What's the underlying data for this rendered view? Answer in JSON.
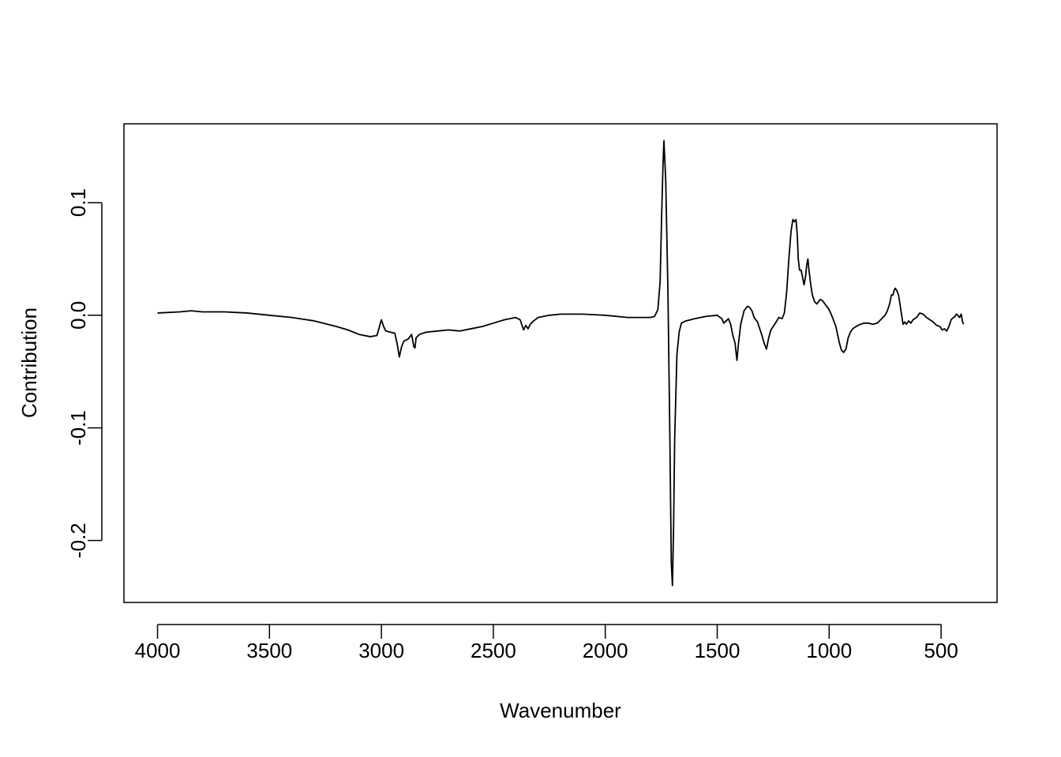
{
  "chart_data": {
    "type": "line",
    "title": "",
    "xlabel": "Wavenumber",
    "ylabel": "Contribution",
    "xlim": [
      4150,
      250
    ],
    "ylim": [
      -0.255,
      0.17
    ],
    "x_reversed": true,
    "grid": false,
    "legend": "none",
    "xticks": [
      4000,
      3500,
      3000,
      2500,
      2000,
      1500,
      1000,
      500
    ],
    "xtick_labels": [
      "4000",
      "3500",
      "3000",
      "2500",
      "2000",
      "1500",
      "1000",
      "500"
    ],
    "yticks": [
      0.1,
      0.0,
      -0.1,
      -0.2
    ],
    "ytick_labels": [
      "0.1",
      "0.0",
      "-0.1",
      "-0.2"
    ],
    "line_color": "#000000",
    "series": [
      {
        "x": [
          4000,
          3900,
          3850,
          3800,
          3700,
          3600,
          3500,
          3400,
          3300,
          3200,
          3150,
          3100,
          3050,
          3020,
          3000,
          2990,
          2980,
          2960,
          2940,
          2930,
          2920,
          2910,
          2900,
          2880,
          2865,
          2855,
          2850,
          2845,
          2830,
          2800,
          2750,
          2700,
          2650,
          2600,
          2550,
          2500,
          2450,
          2400,
          2380,
          2365,
          2355,
          2345,
          2335,
          2320,
          2300,
          2250,
          2200,
          2100,
          2000,
          1900,
          1800,
          1780,
          1765,
          1755,
          1748,
          1742,
          1738,
          1730,
          1720,
          1712,
          1708,
          1705,
          1700,
          1695,
          1690,
          1680,
          1670,
          1660,
          1640,
          1600,
          1550,
          1500,
          1480,
          1470,
          1460,
          1450,
          1440,
          1430,
          1420,
          1412,
          1405,
          1395,
          1380,
          1365,
          1355,
          1345,
          1335,
          1320,
          1300,
          1290,
          1280,
          1270,
          1260,
          1240,
          1225,
          1210,
          1200,
          1190,
          1180,
          1170,
          1162,
          1155,
          1148,
          1142,
          1138,
          1132,
          1125,
          1118,
          1112,
          1105,
          1100,
          1095,
          1090,
          1082,
          1075,
          1065,
          1055,
          1040,
          1030,
          1015,
          1000,
          985,
          970,
          955,
          945,
          935,
          925,
          915,
          905,
          895,
          880,
          860,
          845,
          825,
          805,
          785,
          765,
          750,
          740,
          730,
          722,
          715,
          710,
          705,
          698,
          690,
          680,
          670,
          662,
          655,
          645,
          635,
          625,
          610,
          595,
          580,
          565,
          550,
          535,
          520,
          505,
          495,
          485,
          475,
          465,
          455,
          445,
          438,
          432,
          425,
          418,
          410,
          405,
          400
        ],
        "y": [
          0.002,
          0.003,
          0.004,
          0.003,
          0.003,
          0.002,
          0.0,
          -0.002,
          -0.005,
          -0.01,
          -0.013,
          -0.017,
          -0.019,
          -0.018,
          -0.004,
          -0.01,
          -0.014,
          -0.015,
          -0.016,
          -0.025,
          -0.037,
          -0.028,
          -0.023,
          -0.021,
          -0.017,
          -0.028,
          -0.029,
          -0.02,
          -0.017,
          -0.015,
          -0.014,
          -0.013,
          -0.014,
          -0.012,
          -0.01,
          -0.007,
          -0.004,
          -0.002,
          -0.004,
          -0.013,
          -0.009,
          -0.012,
          -0.008,
          -0.005,
          -0.002,
          0.0,
          0.001,
          0.001,
          0.0,
          -0.002,
          -0.002,
          -0.001,
          0.005,
          0.03,
          0.09,
          0.135,
          0.155,
          0.12,
          0.02,
          -0.1,
          -0.17,
          -0.22,
          -0.24,
          -0.19,
          -0.11,
          -0.035,
          -0.015,
          -0.007,
          -0.005,
          -0.003,
          -0.001,
          0.0,
          -0.003,
          -0.007,
          -0.005,
          -0.003,
          -0.008,
          -0.018,
          -0.025,
          -0.04,
          -0.025,
          -0.008,
          0.004,
          0.008,
          0.007,
          0.004,
          -0.002,
          -0.006,
          -0.018,
          -0.025,
          -0.03,
          -0.02,
          -0.013,
          -0.007,
          -0.002,
          -0.003,
          0.002,
          0.02,
          0.05,
          0.075,
          0.085,
          0.083,
          0.085,
          0.07,
          0.05,
          0.04,
          0.04,
          0.033,
          0.027,
          0.035,
          0.045,
          0.05,
          0.04,
          0.027,
          0.018,
          0.012,
          0.01,
          0.014,
          0.013,
          0.009,
          0.005,
          -0.002,
          -0.01,
          -0.024,
          -0.031,
          -0.033,
          -0.03,
          -0.02,
          -0.015,
          -0.012,
          -0.01,
          -0.008,
          -0.007,
          -0.007,
          -0.008,
          -0.007,
          -0.003,
          0.0,
          0.004,
          0.01,
          0.018,
          0.018,
          0.022,
          0.024,
          0.022,
          0.018,
          0.005,
          -0.008,
          -0.006,
          -0.008,
          -0.005,
          -0.007,
          -0.004,
          -0.002,
          0.002,
          0.001,
          -0.002,
          -0.004,
          -0.006,
          -0.009,
          -0.01,
          -0.013,
          -0.012,
          -0.014,
          -0.01,
          -0.004,
          -0.002,
          -0.001,
          0.001,
          0.0,
          -0.002,
          0.001,
          -0.005,
          -0.008
        ]
      }
    ]
  }
}
